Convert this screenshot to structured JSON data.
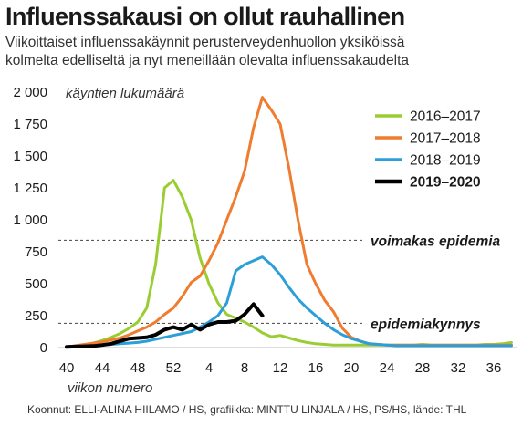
{
  "header": {
    "title": "Influenssakausi on ollut rauhallinen",
    "subtitle_lines": [
      "Viikoittaiset influenssakäynnit perusterveydenhuollon yksiköissä",
      "kolmelta edelliseltä ja nyt meneillään olevalta influenssakaudelta"
    ]
  },
  "footer": {
    "credits": "Koonnut: ELLI-ALINA HIILAMO / HS, grafiikka: MINTTU LINJALA / HS, PS/HS, lähde: THL"
  },
  "chart_data": {
    "type": "line",
    "ylabel": "käyntien lukumäärä",
    "xlabel": "viikon numero",
    "ylim": [
      0,
      2000
    ],
    "yticks": [
      {
        "value": 0,
        "label": "0"
      },
      {
        "value": 250,
        "label": "250"
      },
      {
        "value": 500,
        "label": "500"
      },
      {
        "value": 750,
        "label": "750"
      },
      {
        "value": 1000,
        "label": "1 000"
      },
      {
        "value": 1250,
        "label": "1 250"
      },
      {
        "value": 1500,
        "label": "1 500"
      },
      {
        "value": 1750,
        "label": "1 750"
      },
      {
        "value": 2000,
        "label": "2 000"
      }
    ],
    "x_categories": [
      "40",
      "41",
      "42",
      "43",
      "44",
      "45",
      "46",
      "47",
      "48",
      "49",
      "50",
      "51",
      "52",
      "1",
      "2",
      "3",
      "4",
      "5",
      "6",
      "7",
      "8",
      "9",
      "10",
      "11",
      "12",
      "13",
      "14",
      "15",
      "16",
      "17",
      "18",
      "19",
      "20",
      "21",
      "22",
      "23",
      "24",
      "25",
      "26",
      "27",
      "28",
      "29",
      "30",
      "31",
      "32",
      "33",
      "34",
      "35",
      "36",
      "37",
      "38"
    ],
    "x_tick_labels": [
      "40",
      "44",
      "48",
      "52",
      "4",
      "8",
      "12",
      "16",
      "20",
      "24",
      "28",
      "32",
      "36"
    ],
    "thresholds": [
      {
        "label": "voimakas epidemia",
        "value": 840
      },
      {
        "label": "epidemiakynnys",
        "value": 190
      }
    ],
    "legend_position": "top-right",
    "series": [
      {
        "name": "2016–2017",
        "color": "#9acd32",
        "values": [
          5,
          10,
          20,
          35,
          55,
          80,
          110,
          150,
          200,
          310,
          650,
          1250,
          1310,
          1180,
          1000,
          700,
          500,
          350,
          260,
          230,
          200,
          160,
          115,
          85,
          95,
          75,
          55,
          40,
          30,
          25,
          20,
          20,
          20,
          20,
          20,
          20,
          20,
          20,
          20,
          20,
          25,
          20,
          20,
          20,
          20,
          20,
          20,
          25,
          25,
          30,
          40
        ]
      },
      {
        "name": "2017–2018",
        "color": "#ef7c2f",
        "values": [
          5,
          15,
          25,
          35,
          45,
          60,
          75,
          100,
          130,
          160,
          200,
          260,
          310,
          400,
          510,
          560,
          680,
          820,
          1000,
          1180,
          1380,
          1720,
          1960,
          1860,
          1750,
          1400,
          1000,
          650,
          500,
          370,
          280,
          150,
          80,
          50,
          30,
          25,
          20,
          20,
          20,
          20,
          20,
          20,
          20,
          20,
          20,
          20,
          20,
          20,
          20,
          20,
          20
        ]
      },
      {
        "name": "2018–2019",
        "color": "#2d9fd8",
        "values": [
          5,
          8,
          12,
          15,
          20,
          25,
          30,
          35,
          40,
          50,
          65,
          80,
          95,
          110,
          125,
          160,
          200,
          250,
          350,
          600,
          650,
          680,
          710,
          650,
          570,
          470,
          380,
          310,
          250,
          190,
          140,
          100,
          70,
          50,
          30,
          25,
          20,
          15,
          15,
          15,
          15,
          15,
          15,
          15,
          15,
          15,
          15,
          15,
          15,
          15,
          15
        ]
      },
      {
        "name": "2019–2020",
        "color": "#000000",
        "values": [
          5,
          8,
          10,
          12,
          20,
          30,
          50,
          70,
          75,
          80,
          100,
          140,
          160,
          140,
          180,
          140,
          180,
          200,
          200,
          210,
          260,
          340,
          250
        ]
      }
    ]
  }
}
